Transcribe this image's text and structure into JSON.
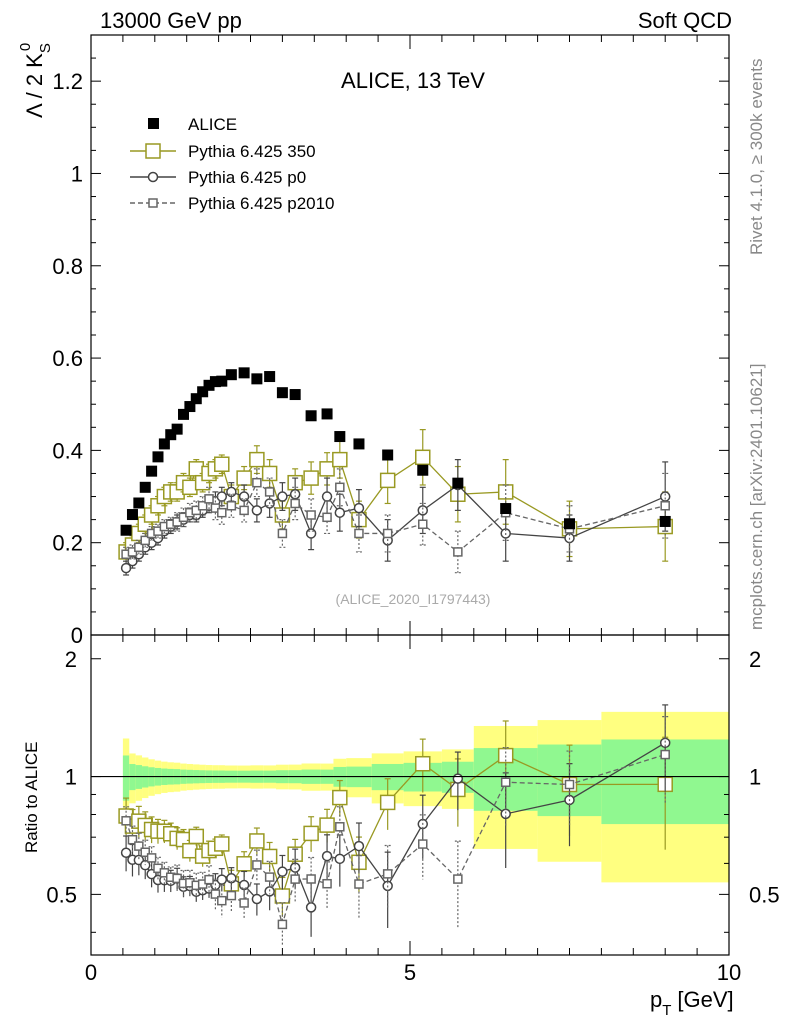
{
  "header": {
    "left": "13000 GeV pp",
    "right": "Soft QCD"
  },
  "plot_title": "ALICE, 13 TeV",
  "side_labels": {
    "rivet": "Rivet 4.1.0, ≥ 300k events",
    "source": "mcplots.cern.ch [arXiv:2401.10621]"
  },
  "analysis_id": "(ALICE_2020_I1797443)",
  "ylabel_main": "Λ / 2 K",
  "ylabel_main_sub": "S",
  "ylabel_main_sup": "0",
  "ylabel_ratio": "Ratio to ALICE",
  "xlabel_main": "p",
  "xlabel_sub": "T",
  "xlabel_unit": "[GeV]",
  "legend": [
    {
      "label": "ALICE"
    },
    {
      "label": "Pythia 6.425 350"
    },
    {
      "label": "Pythia 6.425 p0"
    },
    {
      "label": "Pythia 6.425 p2010"
    }
  ],
  "colors": {
    "alice": "#000000",
    "p350": "#999922",
    "p0": "#444444",
    "p2010": "#666666",
    "band_outer": "#ffff80",
    "band_inner": "#90f890"
  },
  "chart_data": {
    "type": "scatter",
    "x_range": [
      0,
      10
    ],
    "main_ylim": [
      0,
      1.3
    ],
    "ratio_ylim": [
      0.35,
      2.3
    ],
    "main_yticks": [
      0,
      0.2,
      0.4,
      0.6,
      0.8,
      1,
      1.2
    ],
    "main_ytick_labels": [
      "0",
      "0.2",
      "0.4",
      "0.6",
      "0.8",
      "1",
      "1.2"
    ],
    "ratio_yticks": [
      0.5,
      1,
      2
    ],
    "ratio_ytick_labels": [
      "0.5",
      "1",
      "2"
    ],
    "xticks": [
      0,
      5,
      10
    ],
    "xtick_labels": [
      "0",
      "5",
      "10"
    ],
    "pt": [
      0.55,
      0.65,
      0.75,
      0.85,
      0.95,
      1.05,
      1.15,
      1.25,
      1.35,
      1.45,
      1.55,
      1.65,
      1.75,
      1.85,
      1.95,
      2.05,
      2.2,
      2.4,
      2.6,
      2.8,
      3.0,
      3.2,
      3.45,
      3.7,
      3.9,
      4.2,
      4.65,
      5.2,
      5.75,
      6.5,
      7.5,
      9.0
    ],
    "pt_halfwidth": [
      0.05,
      0.05,
      0.05,
      0.05,
      0.05,
      0.05,
      0.05,
      0.05,
      0.05,
      0.05,
      0.05,
      0.05,
      0.05,
      0.05,
      0.05,
      0.05,
      0.1,
      0.1,
      0.1,
      0.1,
      0.1,
      0.1,
      0.15,
      0.1,
      0.1,
      0.2,
      0.25,
      0.3,
      0.25,
      0.5,
      0.5,
      1.0
    ],
    "series": [
      {
        "name": "ALICE",
        "values": [
          0.227,
          0.261,
          0.286,
          0.32,
          0.355,
          0.386,
          0.414,
          0.434,
          0.446,
          0.478,
          0.495,
          0.512,
          0.527,
          0.541,
          0.549,
          0.55,
          0.564,
          0.568,
          0.555,
          0.56,
          0.525,
          0.521,
          0.475,
          0.479,
          0.43,
          0.414,
          0.39,
          0.357,
          0.329,
          0.274,
          0.241,
          0.246
        ],
        "band": [
          0.03,
          0.02,
          0.02,
          0.02,
          0.02,
          0.02,
          0.02,
          0.02,
          0.02,
          0.02,
          0.02,
          0.02,
          0.02,
          0.02,
          0.02,
          0.02,
          0.02,
          0.02,
          0.02,
          0.02,
          0.02,
          0.02,
          0.02,
          0.02,
          0.025,
          0.025,
          0.03,
          0.03,
          0.03,
          0.05,
          0.05,
          0.06
        ]
      },
      {
        "name": "Pythia 6.425 350",
        "values": [
          0.18,
          0.195,
          0.22,
          0.24,
          0.26,
          0.28,
          0.3,
          0.31,
          0.31,
          0.33,
          0.32,
          0.36,
          0.33,
          0.35,
          0.36,
          0.37,
          0.3,
          0.34,
          0.38,
          0.35,
          0.26,
          0.33,
          0.34,
          0.36,
          0.38,
          0.25,
          0.335,
          0.385,
          0.305,
          0.31,
          0.23,
          0.235
        ],
        "errs": [
          0.02,
          0.02,
          0.02,
          0.02,
          0.02,
          0.02,
          0.02,
          0.02,
          0.02,
          0.02,
          0.02,
          0.02,
          0.02,
          0.02,
          0.02,
          0.02,
          0.025,
          0.025,
          0.03,
          0.03,
          0.03,
          0.03,
          0.035,
          0.035,
          0.04,
          0.04,
          0.05,
          0.06,
          0.06,
          0.07,
          0.06,
          0.075
        ]
      },
      {
        "name": "Pythia 6.425 p0",
        "values": [
          0.145,
          0.16,
          0.175,
          0.19,
          0.2,
          0.21,
          0.225,
          0.235,
          0.245,
          0.25,
          0.26,
          0.26,
          0.27,
          0.28,
          0.29,
          0.3,
          0.31,
          0.3,
          0.27,
          0.285,
          0.3,
          0.305,
          0.22,
          0.3,
          0.265,
          0.275,
          0.205,
          0.27,
          0.325,
          0.22,
          0.21,
          0.3
        ],
        "errs": [
          0.015,
          0.015,
          0.015,
          0.015,
          0.015,
          0.015,
          0.015,
          0.015,
          0.015,
          0.015,
          0.015,
          0.015,
          0.015,
          0.015,
          0.02,
          0.02,
          0.02,
          0.025,
          0.025,
          0.03,
          0.03,
          0.035,
          0.035,
          0.04,
          0.04,
          0.04,
          0.045,
          0.05,
          0.055,
          0.06,
          0.05,
          0.075
        ]
      },
      {
        "name": "Pythia 6.425 p2010",
        "values": [
          0.175,
          0.18,
          0.19,
          0.205,
          0.22,
          0.225,
          0.235,
          0.24,
          0.245,
          0.255,
          0.265,
          0.27,
          0.28,
          0.295,
          0.275,
          0.265,
          0.28,
          0.27,
          0.33,
          0.31,
          0.22,
          0.285,
          0.26,
          0.255,
          0.32,
          0.22,
          0.22,
          0.24,
          0.18,
          0.265,
          0.23,
          0.28
        ],
        "errs": [
          0.015,
          0.015,
          0.015,
          0.015,
          0.015,
          0.015,
          0.015,
          0.015,
          0.02,
          0.02,
          0.02,
          0.02,
          0.02,
          0.025,
          0.025,
          0.025,
          0.025,
          0.025,
          0.03,
          0.03,
          0.03,
          0.035,
          0.035,
          0.035,
          0.04,
          0.04,
          0.04,
          0.045,
          0.045,
          0.06,
          0.05,
          0.07
        ]
      }
    ]
  }
}
